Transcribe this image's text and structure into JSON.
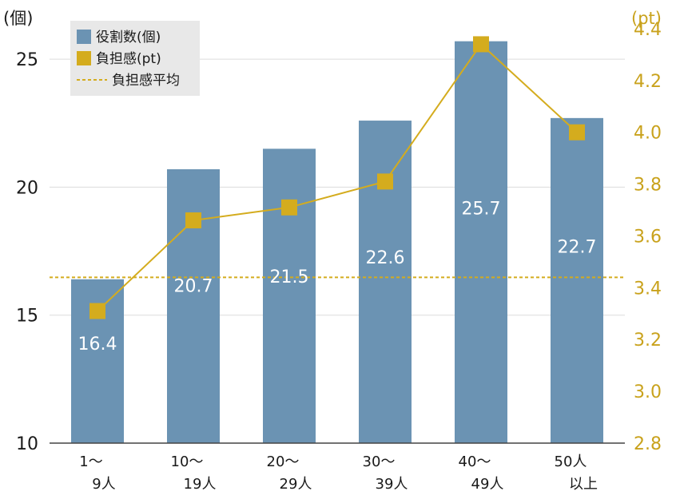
{
  "chart_data": {
    "type": "bar",
    "categories": [
      [
        "1〜",
        "9人"
      ],
      [
        "10〜",
        "19人"
      ],
      [
        "20〜",
        "29人"
      ],
      [
        "30〜",
        "39人"
      ],
      [
        "40〜",
        "49人"
      ],
      [
        "50人",
        "以上"
      ]
    ],
    "series": [
      {
        "name": "役割数(個)",
        "type": "bar",
        "axis": "left",
        "values": [
          16.4,
          20.7,
          21.5,
          22.6,
          25.7,
          22.7
        ],
        "data_labels": [
          "16.4",
          "20.7",
          "21.5",
          "22.6",
          "25.7",
          "22.7"
        ],
        "color": "#6b93b3"
      },
      {
        "name": "負担感(pt)",
        "type": "line",
        "axis": "right",
        "values": [
          3.31,
          3.66,
          3.71,
          3.81,
          4.34,
          4.0
        ],
        "color": "#d4ac1e"
      },
      {
        "name": "負担感平均",
        "type": "reference-line",
        "axis": "right",
        "value": 3.44,
        "color": "#d4ac1e"
      }
    ],
    "left_axis": {
      "unit": "(個)",
      "ylim": [
        10,
        27
      ],
      "ticks": [
        "10",
        "15",
        "20",
        "25"
      ],
      "tick_values": [
        10,
        15,
        20,
        25
      ]
    },
    "right_axis": {
      "unit": "(pt)",
      "ylim": [
        2.8,
        4.48
      ],
      "ticks": [
        "2.8",
        "3.0",
        "3.2",
        "3.4",
        "3.6",
        "3.8",
        "4.0",
        "4.2",
        "4.4"
      ],
      "tick_values": [
        2.8,
        3.0,
        3.2,
        3.4,
        3.6,
        3.8,
        4.0,
        4.2,
        4.4
      ]
    },
    "grid": true,
    "legend": {
      "position": "top-left",
      "items": [
        {
          "label": "役割数(個)",
          "kind": "bar-swatch"
        },
        {
          "label": "負担感(pt)",
          "kind": "marker-swatch"
        },
        {
          "label": "負担感平均",
          "kind": "dotted-line"
        }
      ]
    }
  }
}
